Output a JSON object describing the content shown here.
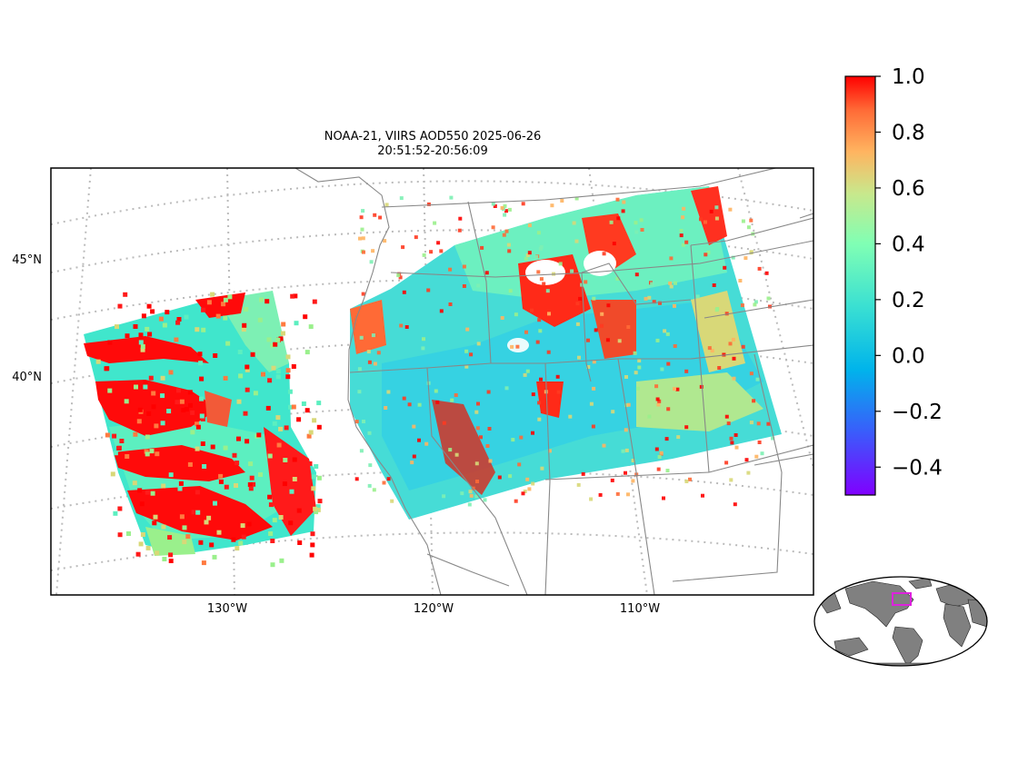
{
  "map": {
    "title_line1": "NOAA-21, VIIRS AOD550 2025-06-26",
    "title_line2": "20:51:52-20:56:09",
    "lat_labels": [
      {
        "value": 45,
        "text": "45°N"
      },
      {
        "value": 40,
        "text": "40°N"
      }
    ],
    "lon_labels": [
      {
        "value": -130,
        "text": "130°W"
      },
      {
        "value": -120,
        "text": "120°W"
      },
      {
        "value": -110,
        "text": "110°W"
      }
    ],
    "extent": {
      "lon_min": -139,
      "lon_max": -101,
      "lat_min": 30.5,
      "lat_max": 49.5
    },
    "graticule": "dotted",
    "colors": {
      "coast": "#888888",
      "grid": "#bbbbbb",
      "frame": "#000000"
    }
  },
  "colorbar": {
    "colormap": "rainbow",
    "vmin": -0.5,
    "vmax": 1.0,
    "ticks": [
      {
        "value": 1.0,
        "text": "1.0"
      },
      {
        "value": 0.8,
        "text": "0.8"
      },
      {
        "value": 0.6,
        "text": "0.6"
      },
      {
        "value": 0.4,
        "text": "0.4"
      },
      {
        "value": 0.2,
        "text": "0.2"
      },
      {
        "value": 0.0,
        "text": "0.0"
      },
      {
        "value": -0.2,
        "text": "−0.2"
      },
      {
        "value": -0.4,
        "text": "−0.4"
      }
    ]
  },
  "inset": {
    "projection": "robinson",
    "highlight_color": "#dd22dd",
    "land_color": "#808080"
  }
}
